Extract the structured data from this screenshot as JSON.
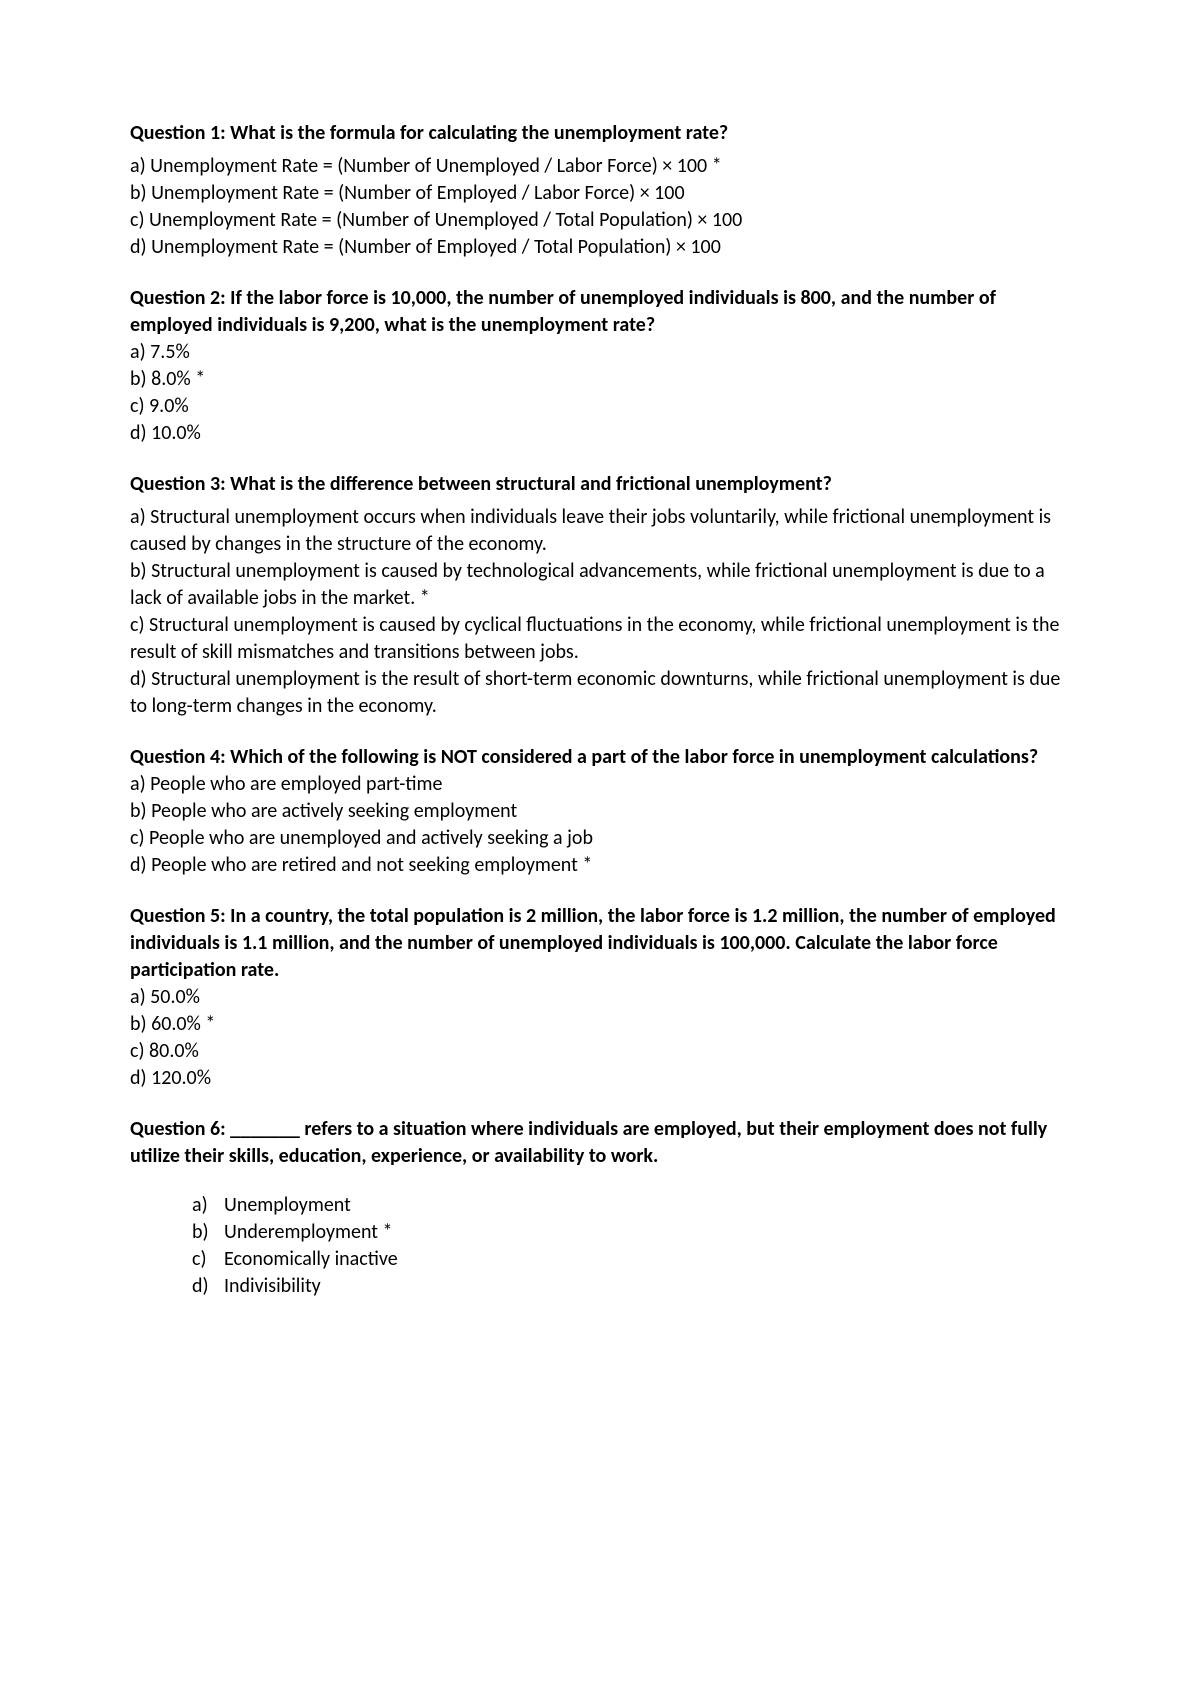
{
  "questions": [
    {
      "title": "Question 1: What is the formula for calculating the unemployment rate?",
      "options": [
        "a) Unemployment Rate = (Number of Unemployed / Labor Force) × 100 *",
        "b) Unemployment Rate = (Number of Employed / Labor Force) × 100",
        "c) Unemployment Rate = (Number of Unemployed / Total Population) × 100",
        "d) Unemployment Rate = (Number of Employed / Total Population) × 100"
      ]
    },
    {
      "title": "Question 2: If the labor force is 10,000, the number of unemployed individuals is 800, and the number of employed individuals is 9,200, what is the unemployment rate?",
      "options": [
        "a) 7.5%",
        "b) 8.0% *",
        "c) 9.0%",
        "d) 10.0%"
      ]
    },
    {
      "title": "Question 3: What is the difference between structural and frictional unemployment?",
      "options": [
        "a) Structural unemployment occurs when individuals leave their jobs voluntarily, while frictional unemployment is caused by changes in the structure of the economy.",
        "b) Structural unemployment is caused by technological advancements, while frictional unemployment is due to a lack of available jobs in the market. *",
        "c) Structural unemployment is caused by cyclical fluctuations in the economy, while frictional unemployment is the result of skill mismatches and transitions between jobs.",
        "d) Structural unemployment is the result of short-term economic downturns, while frictional unemployment is due to long-term changes in the economy."
      ]
    },
    {
      "title": "Question 4: Which of the following is NOT considered a part of the labor force in unemployment calculations?",
      "options": [
        "a) People who are employed part-time",
        "b) People who are actively seeking employment",
        "c) People who are unemployed and actively seeking a job",
        "d) People who are retired and not seeking employment *"
      ]
    },
    {
      "title": "Question 5: In a country, the total population is 2 million, the labor force is 1.2 million, the number of employed individuals is 1.1 million, and the number of unemployed individuals is 100,000. Calculate the labor force participation rate.",
      "options": [
        "a) 50.0%",
        "b) 60.0% *",
        "c) 80.0%",
        "d) 120.0%"
      ]
    },
    {
      "title": "Question 6: _______ refers to a situation where individuals are employed, but their employment does not fully utilize their skills, education, experience, or availability to work.",
      "indented_options": [
        {
          "letter": "a)",
          "text": "Unemployment"
        },
        {
          "letter": "b)",
          "text": "Underemployment *"
        },
        {
          "letter": "c)",
          "text": "Economically inactive"
        },
        {
          "letter": "d)",
          "text": "Indivisibility"
        }
      ]
    }
  ]
}
